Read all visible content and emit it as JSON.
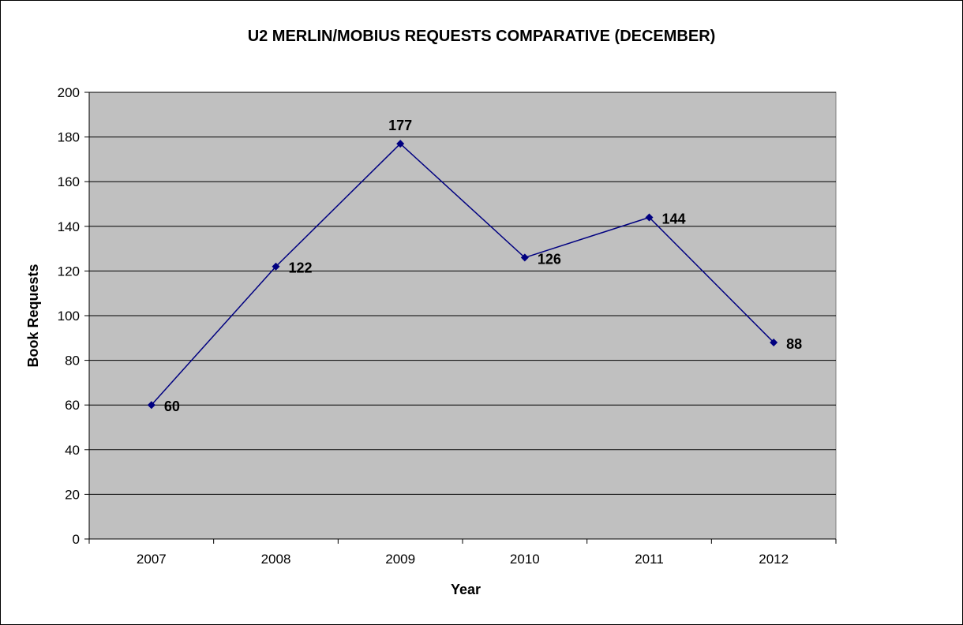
{
  "chart_data": {
    "type": "line",
    "title": "U2 MERLIN/MOBIUS REQUESTS COMPARATIVE (DECEMBER)",
    "xlabel": "Year",
    "ylabel": "Book Requests",
    "categories": [
      "2007",
      "2008",
      "2009",
      "2010",
      "2011",
      "2012"
    ],
    "values": [
      60,
      122,
      177,
      126,
      144,
      88
    ],
    "ylim": [
      0,
      200
    ],
    "yticks": [
      0,
      20,
      40,
      60,
      80,
      100,
      120,
      140,
      160,
      180,
      200
    ],
    "grid": true,
    "legend": "none",
    "data_labels": true,
    "colors": {
      "line": "#000080",
      "plot_background": "#C0C0C0",
      "grid": "#000000"
    }
  }
}
